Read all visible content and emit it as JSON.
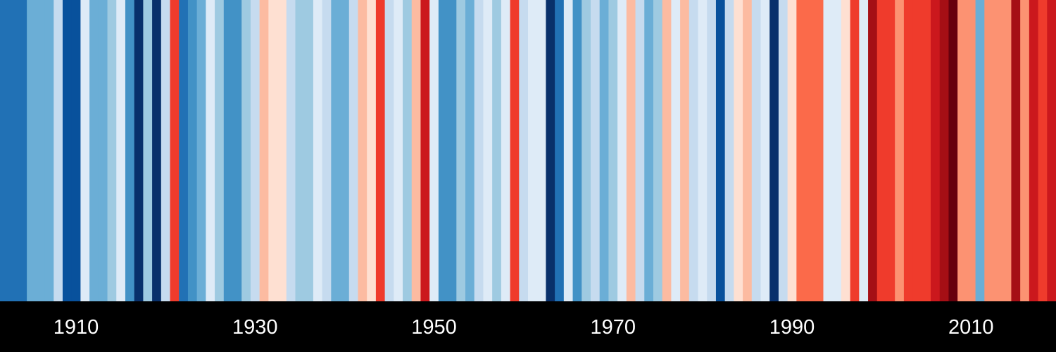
{
  "chart_data": {
    "type": "heatmap",
    "title": "",
    "xlabel": "",
    "ylabel": "",
    "x_start_year": 1902,
    "x_end_year": 2019,
    "xticks": [
      1910,
      1930,
      1950,
      1970,
      1990,
      2010
    ],
    "stripe_colors": [
      "#2171b5",
      "#2171b5",
      "#2171b5",
      "#6baed6",
      "#6baed6",
      "#6baed6",
      "#c6dbef",
      "#08519c",
      "#08519c",
      "#deebf7",
      "#6baed6",
      "#6baed6",
      "#9ecae1",
      "#deebf7",
      "#4292c6",
      "#08306b",
      "#9ecae1",
      "#08306b",
      "#c6dbef",
      "#ef3b2c",
      "#2171b5",
      "#4292c6",
      "#6baed6",
      "#deebf7",
      "#9ecae1",
      "#4292c6",
      "#4292c6",
      "#9ecae1",
      "#c6dbef",
      "#fcbba1",
      "#fee0d2",
      "#fee0d2",
      "#c6dbef",
      "#9ecae1",
      "#9ecae1",
      "#deebf7",
      "#c6dbef",
      "#6baed6",
      "#6baed6",
      "#c6dbef",
      "#fcbba1",
      "#fee0d2",
      "#ef3b2c",
      "#c6dbef",
      "#deebf7",
      "#9ecae1",
      "#fcbba1",
      "#cb181d",
      "#deebf7",
      "#4292c6",
      "#4292c6",
      "#9ecae1",
      "#6baed6",
      "#c6dbef",
      "#deebf7",
      "#9ecae1",
      "#deebf7",
      "#ef3b2c",
      "#c6dbef",
      "#deebf7",
      "#deebf7",
      "#08306b",
      "#2171b5",
      "#deebf7",
      "#4292c6",
      "#9ecae1",
      "#c6dbef",
      "#6baed6",
      "#9ecae1",
      "#deebf7",
      "#fcbba1",
      "#c6dbef",
      "#6baed6",
      "#9ecae1",
      "#fcbba1",
      "#deebf7",
      "#fcbba1",
      "#c6dbef",
      "#deebf7",
      "#c6dbef",
      "#08519c",
      "#c6dbef",
      "#fee0d2",
      "#fcbba1",
      "#c6dbef",
      "#deebf7",
      "#08306b",
      "#c6dbef",
      "#fee0d2",
      "#fb6a4a",
      "#fb6a4a",
      "#fb6a4a",
      "#deebf7",
      "#deebf7",
      "#fee0d2",
      "#ef3b2c",
      "#deebf7",
      "#a50f15",
      "#ef3b2c",
      "#ef3b2c",
      "#fc9272",
      "#ef3b2c",
      "#ef3b2c",
      "#ef3b2c",
      "#cb181d",
      "#a50f15",
      "#67000d",
      "#fc9272",
      "#fc9272",
      "#6baed6",
      "#fc9272",
      "#fc9272",
      "#fc9272",
      "#a50f15",
      "#fc9272",
      "#cb181d",
      "#ef3b2c",
      "#cb181d"
    ]
  }
}
